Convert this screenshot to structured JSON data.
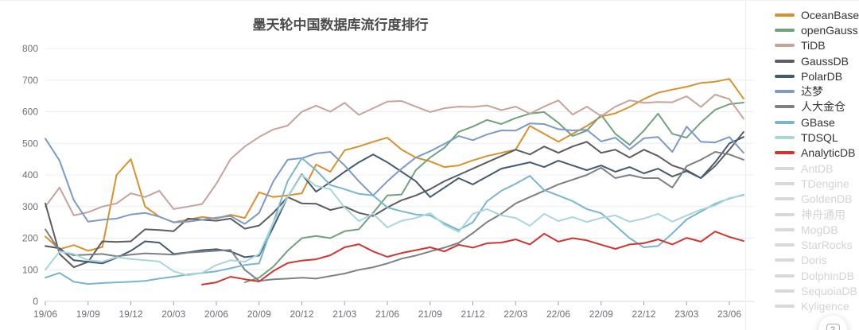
{
  "title": "墨天轮中国数据库流行度排行",
  "help_button": {
    "icon_glyph": "?"
  },
  "colors": {
    "axis_text": "#6e7079",
    "grid_line": "#e8edf4",
    "axis_line": "#d8dbe0",
    "tick_mark": "#9da0a8",
    "disabled_legend": "#d3d4d8",
    "disabled_swatch": "#d8d9dd",
    "legend_text": "#333333",
    "title_text": "#4c4c4c"
  },
  "chart_data": {
    "type": "line",
    "title": "墨天轮中国数据库流行度排行",
    "legend_position": "right",
    "grid": true,
    "ylim": [
      0,
      800
    ],
    "y_ticks": [
      0,
      100,
      200,
      300,
      400,
      500,
      600,
      700,
      800
    ],
    "x_tick_labels": [
      "19/06",
      "19/09",
      "19/12",
      "20/03",
      "20/06",
      "20/09",
      "20/12",
      "21/03",
      "21/06",
      "21/09",
      "21/12",
      "22/03",
      "22/06",
      "22/09",
      "22/12",
      "23/03",
      "23/06"
    ],
    "x": [
      "19/06",
      "19/07",
      "19/08",
      "19/09",
      "19/10",
      "19/11",
      "19/12",
      "20/01",
      "20/02",
      "20/03",
      "20/04",
      "20/05",
      "20/06",
      "20/07",
      "20/08",
      "20/09",
      "20/10",
      "20/11",
      "20/12",
      "21/01",
      "21/02",
      "21/03",
      "21/04",
      "21/05",
      "21/06",
      "21/07",
      "21/08",
      "21/09",
      "21/10",
      "21/11",
      "21/12",
      "22/01",
      "22/02",
      "22/03",
      "22/04",
      "22/05",
      "22/06",
      "22/07",
      "22/08",
      "22/09",
      "22/10",
      "22/11",
      "22/12",
      "23/01",
      "23/02",
      "23/03",
      "23/04",
      "23/05",
      "23/06",
      "23/07"
    ],
    "series": [
      {
        "name": "OceanBase",
        "color": "#d9912c",
        "enabled": true,
        "values": [
          205,
          165,
          178,
          160,
          172,
          400,
          450,
          300,
          268,
          250,
          258,
          267,
          262,
          274,
          264,
          345,
          330,
          335,
          342,
          433,
          410,
          478,
          490,
          505,
          518,
          480,
          455,
          443,
          425,
          430,
          446,
          460,
          470,
          480,
          555,
          530,
          505,
          530,
          555,
          585,
          595,
          615,
          640,
          660,
          670,
          679,
          691,
          695,
          704,
          641
        ]
      },
      {
        "name": "openGauss",
        "color": "#71a27b",
        "enabled": true,
        "values": [
          null,
          null,
          null,
          null,
          null,
          null,
          null,
          null,
          null,
          null,
          null,
          null,
          null,
          null,
          60,
          75,
          110,
          160,
          200,
          207,
          200,
          222,
          228,
          280,
          335,
          338,
          415,
          455,
          486,
          536,
          553,
          574,
          561,
          580,
          594,
          599,
          565,
          523,
          540,
          590,
          530,
          495,
          540,
          594,
          530,
          518,
          566,
          606,
          624,
          629
        ]
      },
      {
        "name": "TiDB",
        "color": "#c7a39c",
        "enabled": true,
        "values": [
          300,
          360,
          272,
          282,
          300,
          310,
          342,
          330,
          350,
          292,
          300,
          308,
          372,
          450,
          490,
          520,
          544,
          556,
          600,
          619,
          600,
          628,
          590,
          611,
          632,
          634,
          616,
          599,
          611,
          616,
          615,
          620,
          605,
          616,
          594,
          616,
          636,
          591,
          616,
          586,
          616,
          636,
          628,
          631,
          630,
          649,
          615,
          654,
          640,
          578
        ]
      },
      {
        "name": "GaussDB",
        "color": "#5b5d61",
        "enabled": true,
        "values": [
          310,
          150,
          108,
          125,
          190,
          188,
          190,
          228,
          226,
          222,
          262,
          258,
          255,
          262,
          230,
          240,
          280,
          330,
          310,
          309,
          289,
          300,
          280,
          270,
          297,
          320,
          335,
          355,
          380,
          400,
          420,
          440,
          460,
          480,
          465,
          490,
          470,
          490,
          505,
          470,
          480,
          455,
          480,
          460,
          430,
          415,
          390,
          428,
          480,
          536
        ]
      },
      {
        "name": "PolarDB",
        "color": "#455a70",
        "enabled": true,
        "values": [
          175,
          168,
          130,
          125,
          120,
          138,
          160,
          190,
          186,
          150,
          155,
          162,
          165,
          158,
          140,
          145,
          235,
          330,
          402,
          347,
          377,
          410,
          440,
          465,
          440,
          410,
          380,
          330,
          360,
          390,
          370,
          395,
          420,
          430,
          440,
          425,
          445,
          430,
          415,
          430,
          410,
          425,
          405,
          420,
          395,
          412,
          390,
          440,
          500,
          520
        ]
      },
      {
        "name": "达梦",
        "color": "#7e9ac8",
        "enabled": true,
        "values": [
          515,
          445,
          320,
          252,
          258,
          262,
          275,
          280,
          268,
          250,
          252,
          258,
          265,
          270,
          245,
          280,
          380,
          448,
          453,
          468,
          473,
          430,
          380,
          335,
          380,
          420,
          455,
          475,
          498,
          523,
          510,
          528,
          541,
          540,
          563,
          561,
          545,
          541,
          543,
          506,
          518,
          481,
          516,
          520,
          473,
          553,
          505,
          503,
          520,
          470
        ]
      },
      {
        "name": "人大金仓",
        "color": "#7f8084",
        "enabled": true,
        "values": [
          228,
          160,
          146,
          148,
          150,
          143,
          148,
          152,
          150,
          148,
          154,
          157,
          160,
          163,
          100,
          65,
          70,
          72,
          75,
          72,
          80,
          88,
          100,
          108,
          120,
          135,
          145,
          158,
          170,
          185,
          216,
          251,
          277,
          310,
          330,
          350,
          370,
          385,
          400,
          423,
          390,
          400,
          390,
          390,
          360,
          428,
          448,
          473,
          465,
          448
        ]
      },
      {
        "name": "GBase",
        "color": "#77b6ce",
        "enabled": true,
        "values": [
          75,
          90,
          62,
          55,
          58,
          60,
          62,
          65,
          72,
          78,
          85,
          90,
          95,
          105,
          115,
          120,
          250,
          380,
          453,
          415,
          368,
          355,
          340,
          335,
          297,
          285,
          275,
          272,
          247,
          226,
          250,
          317,
          350,
          372,
          397,
          352,
          335,
          317,
          292,
          279,
          240,
          200,
          171,
          175,
          215,
          259,
          284,
          309,
          325,
          337
        ]
      },
      {
        "name": "TDSQL",
        "color": "#a9d6dd",
        "enabled": true,
        "values": [
          100,
          158,
          150,
          130,
          126,
          140,
          134,
          130,
          126,
          95,
          82,
          90,
          115,
          130,
          125,
          150,
          250,
          330,
          400,
          365,
          355,
          297,
          254,
          277,
          234,
          255,
          264,
          279,
          242,
          220,
          277,
          292,
          272,
          264,
          239,
          277,
          254,
          267,
          251,
          264,
          272,
          252,
          262,
          277,
          252,
          272,
          290,
          304,
          327,
          335
        ]
      },
      {
        "name": "AnalyticDB",
        "color": "#d23430",
        "enabled": true,
        "values": [
          null,
          null,
          null,
          null,
          null,
          null,
          null,
          null,
          null,
          null,
          null,
          53,
          60,
          78,
          70,
          63,
          96,
          121,
          129,
          133,
          146,
          171,
          181,
          158,
          141,
          153,
          162,
          171,
          158,
          179,
          170,
          184,
          186,
          196,
          180,
          214,
          189,
          200,
          193,
          179,
          166,
          180,
          184,
          196,
          180,
          201,
          189,
          221,
          204,
          191
        ]
      },
      {
        "name": "AntDB",
        "color": "#d8d9dd",
        "enabled": false,
        "values": []
      },
      {
        "name": "TDengine",
        "color": "#d8d9dd",
        "enabled": false,
        "values": []
      },
      {
        "name": "GoldenDB",
        "color": "#d8d9dd",
        "enabled": false,
        "values": []
      },
      {
        "name": "神舟通用",
        "color": "#d8d9dd",
        "enabled": false,
        "values": []
      },
      {
        "name": "MogDB",
        "color": "#d8d9dd",
        "enabled": false,
        "values": []
      },
      {
        "name": "StarRocks",
        "color": "#d8d9dd",
        "enabled": false,
        "values": []
      },
      {
        "name": "Doris",
        "color": "#d8d9dd",
        "enabled": false,
        "values": []
      },
      {
        "name": "DolphinDB",
        "color": "#d8d9dd",
        "enabled": false,
        "values": []
      },
      {
        "name": "SequoiaDB",
        "color": "#d8d9dd",
        "enabled": false,
        "values": []
      },
      {
        "name": "Kyligence",
        "color": "#d8d9dd",
        "enabled": false,
        "values": []
      }
    ]
  }
}
